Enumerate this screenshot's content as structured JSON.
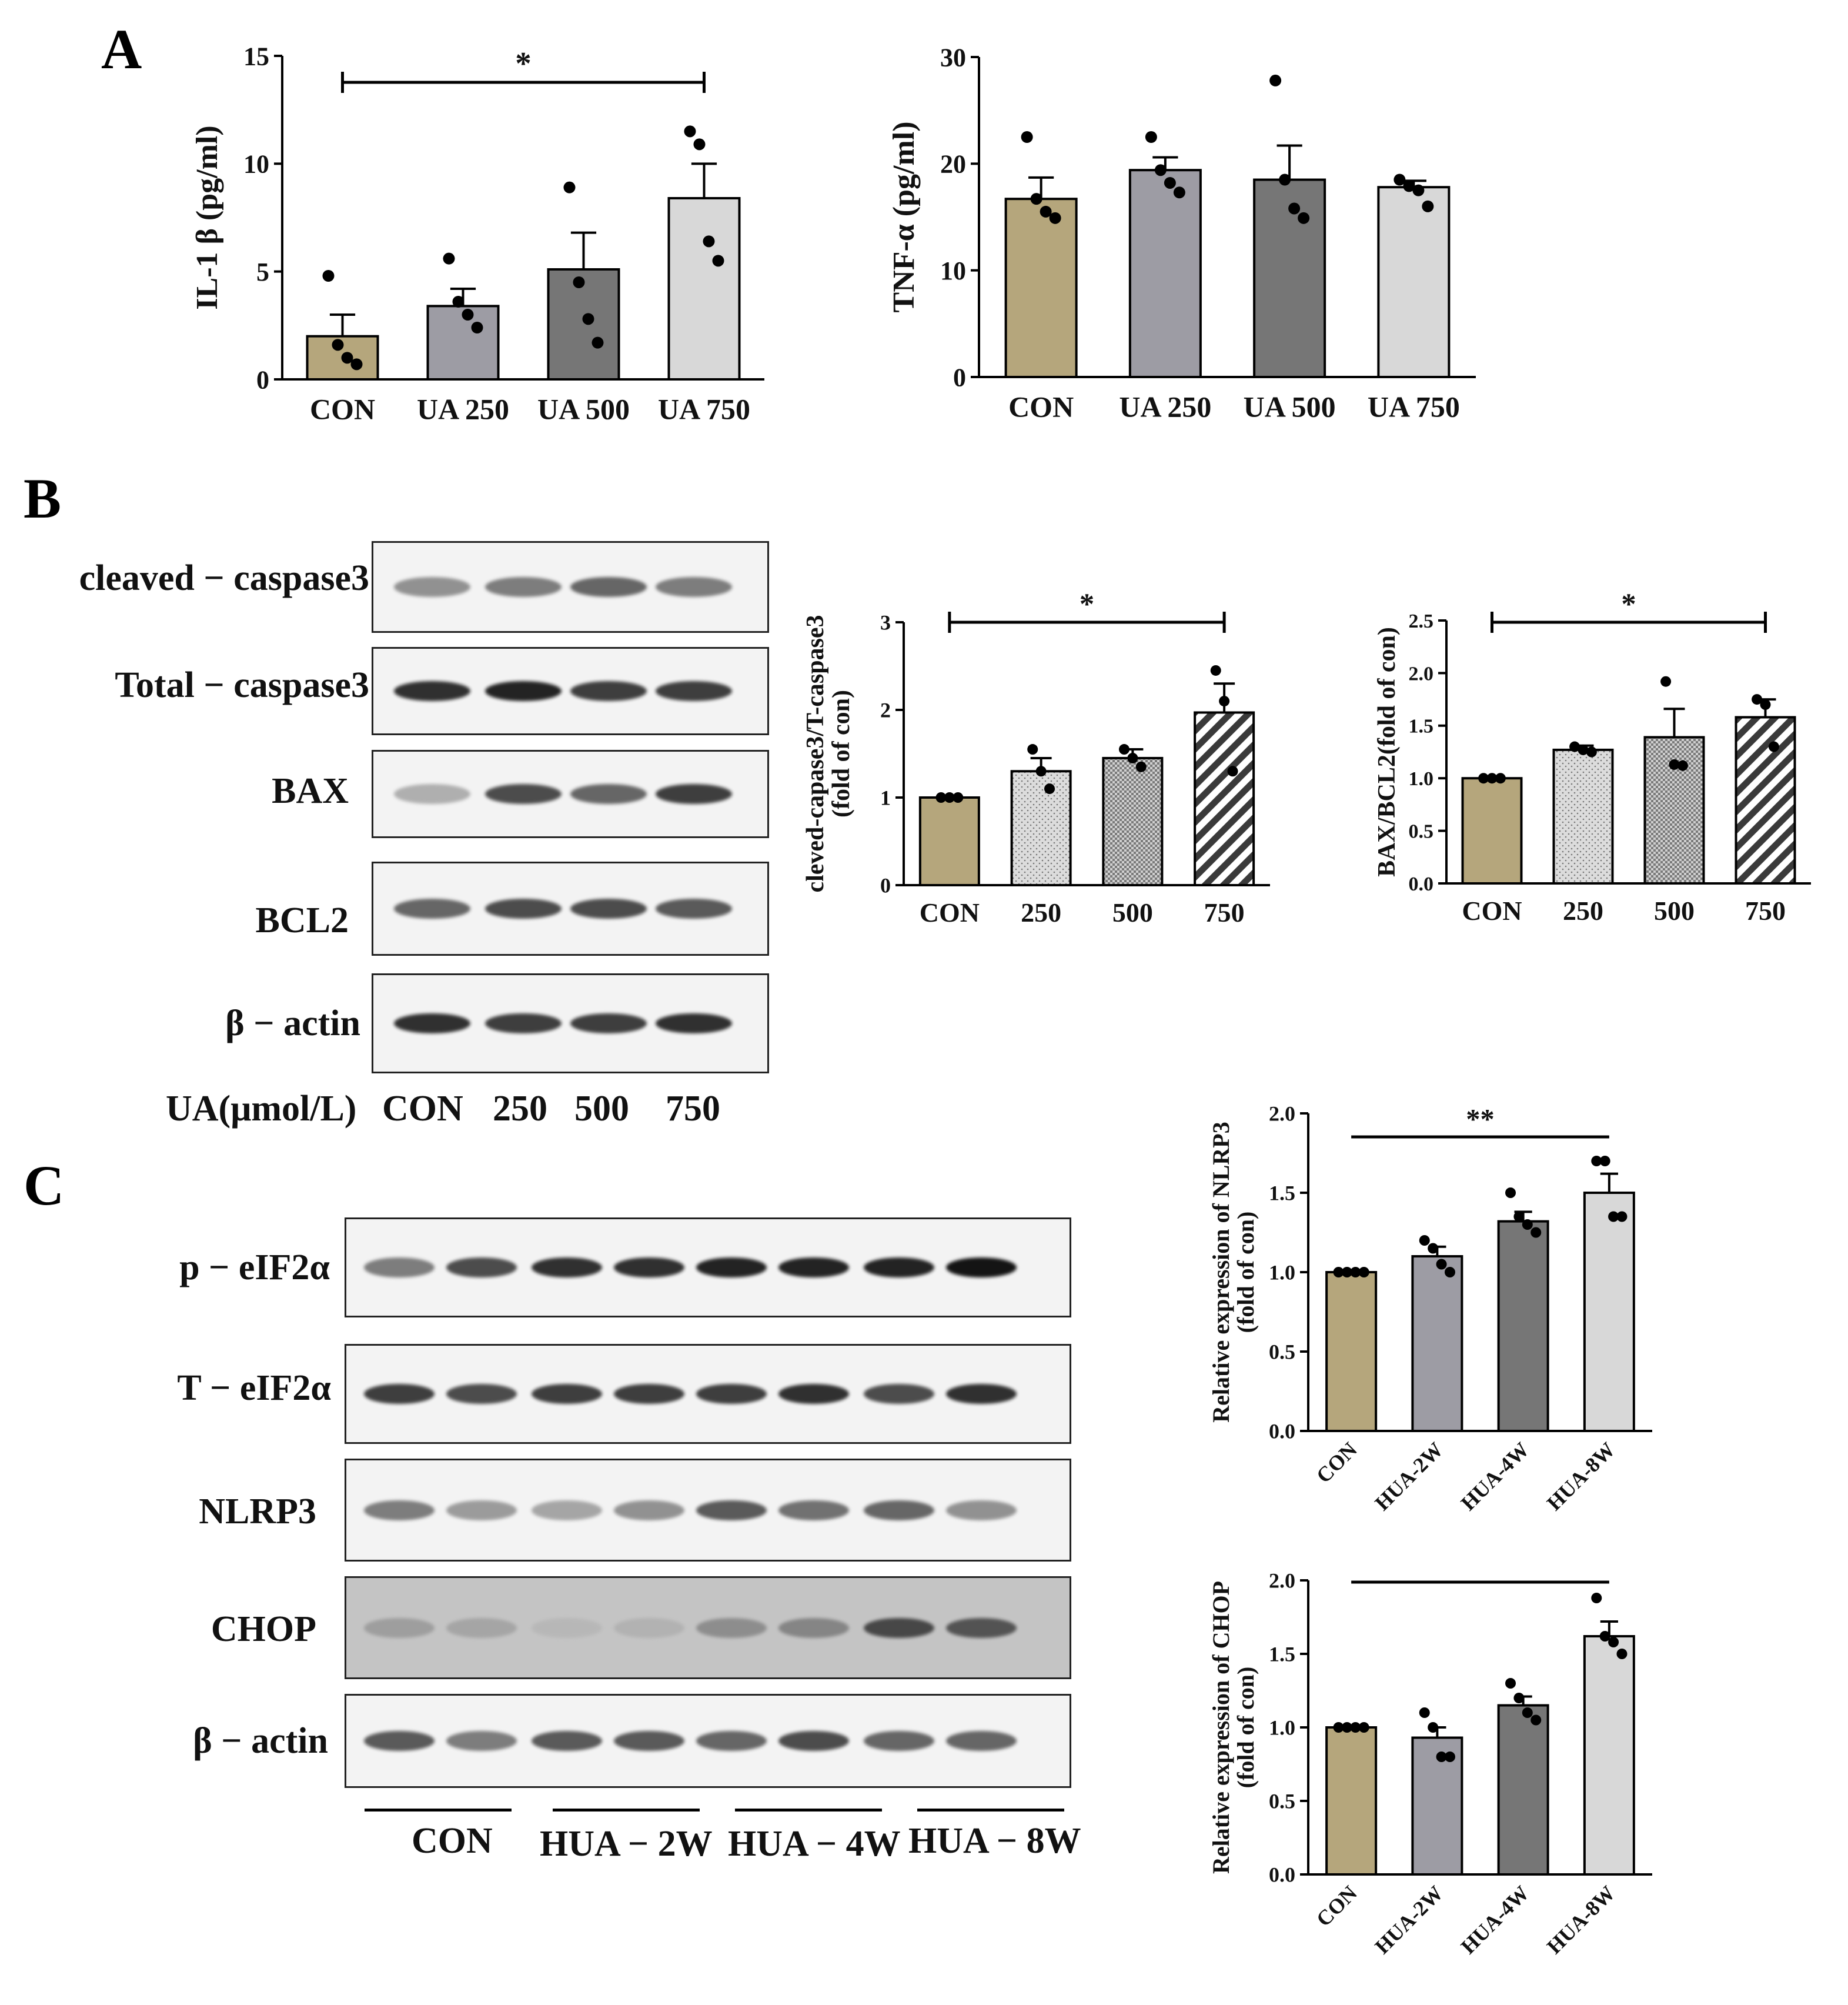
{
  "panels": {
    "A": "A",
    "B": "B",
    "C": "C"
  },
  "colors": {
    "con": "#b5a67c",
    "g2": "#9d9ca4",
    "g3": "#767676",
    "g4": "#d8d8d8",
    "light": "#dcdcdc",
    "medium": "#b6b6b6",
    "hatch": "#3a3a3a"
  },
  "chart_data": [
    {
      "id": "il1b",
      "type": "bar",
      "panel": "A",
      "categories": [
        "CON",
        "UA 250",
        "UA 500",
        "UA 750"
      ],
      "values": [
        2.0,
        3.4,
        5.1,
        8.4
      ],
      "errors": [
        1.0,
        0.8,
        1.7,
        1.6
      ],
      "points": [
        [
          4.8,
          1.6,
          1.0,
          0.7
        ],
        [
          5.6,
          3.6,
          3.0,
          2.4
        ],
        [
          8.9,
          4.5,
          2.8,
          1.7
        ],
        [
          11.5,
          10.9,
          6.4,
          5.5
        ]
      ],
      "title": "",
      "xlabel": "",
      "ylabel": "IL-1 β (pg/ml)",
      "ylim": [
        0,
        15
      ],
      "yticks": [
        "0",
        "5",
        "10",
        "15"
      ],
      "significance": [
        {
          "from": 0,
          "to": 3,
          "label": "*"
        }
      ]
    },
    {
      "id": "tnfa",
      "type": "bar",
      "panel": "A",
      "categories": [
        "CON",
        "UA 250",
        "UA 500",
        "UA 750"
      ],
      "values": [
        16.7,
        19.4,
        18.5,
        17.8
      ],
      "errors": [
        2.0,
        1.2,
        3.2,
        0.6
      ],
      "points": [
        [
          22.5,
          16.7,
          15.5,
          14.9
        ],
        [
          22.5,
          19.4,
          18.2,
          17.3
        ],
        [
          27.8,
          18.5,
          15.8,
          14.9
        ],
        [
          18.5,
          17.9,
          17.5,
          16.0
        ]
      ],
      "title": "",
      "xlabel": "",
      "ylabel": "TNF-α (pg/ml)",
      "ylim": [
        0,
        30
      ],
      "yticks": [
        "0",
        "10",
        "20",
        "30"
      ],
      "significance": []
    },
    {
      "id": "caspase",
      "type": "bar",
      "panel": "B",
      "categories": [
        "CON",
        "250",
        "500",
        "750"
      ],
      "values": [
        1.0,
        1.3,
        1.45,
        1.97
      ],
      "errors": [
        0.0,
        0.15,
        0.1,
        0.33
      ],
      "points": [
        [
          1.0,
          1.0,
          1.0
        ],
        [
          1.55,
          1.3,
          1.1
        ],
        [
          1.55,
          1.45,
          1.35
        ],
        [
          2.45,
          2.1,
          1.3
        ]
      ],
      "title": "",
      "xlabel": "",
      "ylabel": "cleved-capase3/T-caspase3 (fold of con)",
      "ylim": [
        0,
        3
      ],
      "yticks": [
        "0",
        "1",
        "2",
        "3"
      ],
      "significance": [
        {
          "from": 0,
          "to": 3,
          "label": "*"
        }
      ]
    },
    {
      "id": "baxbcl2",
      "type": "bar",
      "panel": "B",
      "categories": [
        "CON",
        "250",
        "500",
        "750"
      ],
      "values": [
        1.0,
        1.27,
        1.39,
        1.58
      ],
      "errors": [
        0.0,
        0.04,
        0.27,
        0.17
      ],
      "points": [
        [
          1.0,
          1.0,
          1.0
        ],
        [
          1.3,
          1.27,
          1.25
        ],
        [
          1.92,
          1.13,
          1.12
        ],
        [
          1.75,
          1.7,
          1.3
        ]
      ],
      "title": "",
      "xlabel": "",
      "ylabel": "BAX/BCL2(fold of con)",
      "ylim": [
        0,
        2.5
      ],
      "yticks": [
        "0.0",
        "0.5",
        "1.0",
        "1.5",
        "2.0",
        "2.5"
      ],
      "significance": [
        {
          "from": 0,
          "to": 3,
          "label": "*"
        }
      ]
    },
    {
      "id": "nlrp3",
      "type": "bar",
      "panel": "C",
      "categories": [
        "CON",
        "HUA-2W",
        "HUA-4W",
        "HUA-8W"
      ],
      "values": [
        1.0,
        1.1,
        1.32,
        1.5
      ],
      "errors": [
        0.0,
        0.06,
        0.06,
        0.12
      ],
      "points": [
        [
          1.0,
          1.0,
          1.0,
          1.0
        ],
        [
          1.2,
          1.15,
          1.05,
          1.0
        ],
        [
          1.5,
          1.35,
          1.3,
          1.25
        ],
        [
          1.7,
          1.7,
          1.35,
          1.35
        ]
      ],
      "title": "",
      "xlabel": "",
      "ylabel": "Relative expression of NLRP3 (fold of con)",
      "ylim": [
        0,
        2.0
      ],
      "yticks": [
        "0.0",
        "0.5",
        "1.0",
        "1.5",
        "2.0"
      ],
      "significance": [
        {
          "from": 0,
          "to": 3,
          "label": "**"
        }
      ]
    },
    {
      "id": "chop",
      "type": "bar",
      "panel": "C",
      "categories": [
        "CON",
        "HUA-2W",
        "HUA-4W",
        "HUA-8W"
      ],
      "values": [
        1.0,
        0.93,
        1.15,
        1.62
      ],
      "errors": [
        0.0,
        0.07,
        0.06,
        0.1
      ],
      "points": [
        [
          1.0,
          1.0,
          1.0,
          1.0
        ],
        [
          1.1,
          1.0,
          0.8,
          0.8
        ],
        [
          1.3,
          1.2,
          1.1,
          1.05
        ],
        [
          1.88,
          1.62,
          1.58,
          1.5
        ]
      ],
      "title": "",
      "xlabel": "",
      "ylabel": "Relative expression of CHOP (fold of con)",
      "ylim": [
        0,
        2.0
      ],
      "yticks": [
        "0.0",
        "0.5",
        "1.0",
        "1.5",
        "2.0"
      ],
      "significance": [
        {
          "from": 0,
          "to": 3,
          "label": ""
        }
      ]
    }
  ],
  "western_b": {
    "labels": [
      "cleaved − caspase3",
      "Total − caspase3",
      "BAX",
      "BCL2",
      "β − actin"
    ],
    "intensities": [
      [
        0.5,
        0.6,
        0.7,
        0.6
      ],
      [
        0.9,
        0.95,
        0.85,
        0.85
      ],
      [
        0.35,
        0.8,
        0.7,
        0.85
      ],
      [
        0.7,
        0.8,
        0.8,
        0.75
      ],
      [
        0.9,
        0.85,
        0.85,
        0.9
      ]
    ],
    "x_title": "UA(μmol/L)",
    "lanes": [
      "CON",
      "250",
      "500",
      "750"
    ]
  },
  "western_c": {
    "labels": [
      "p − eIF2α",
      "T − eIF2α",
      "NLRP3",
      "CHOP",
      "β − actin"
    ],
    "intensities": [
      [
        0.6,
        0.8,
        0.9,
        0.9,
        0.95,
        0.95,
        0.95,
        1.0
      ],
      [
        0.85,
        0.8,
        0.85,
        0.85,
        0.85,
        0.9,
        0.8,
        0.9
      ],
      [
        0.6,
        0.45,
        0.4,
        0.5,
        0.75,
        0.65,
        0.7,
        0.5
      ],
      [
        0.35,
        0.3,
        0.15,
        0.2,
        0.45,
        0.5,
        0.8,
        0.75
      ],
      [
        0.75,
        0.6,
        0.75,
        0.75,
        0.7,
        0.8,
        0.7,
        0.7
      ]
    ],
    "groups": [
      "CON",
      "HUA − 2W",
      "HUA − 4W",
      "HUA − 8W"
    ]
  }
}
